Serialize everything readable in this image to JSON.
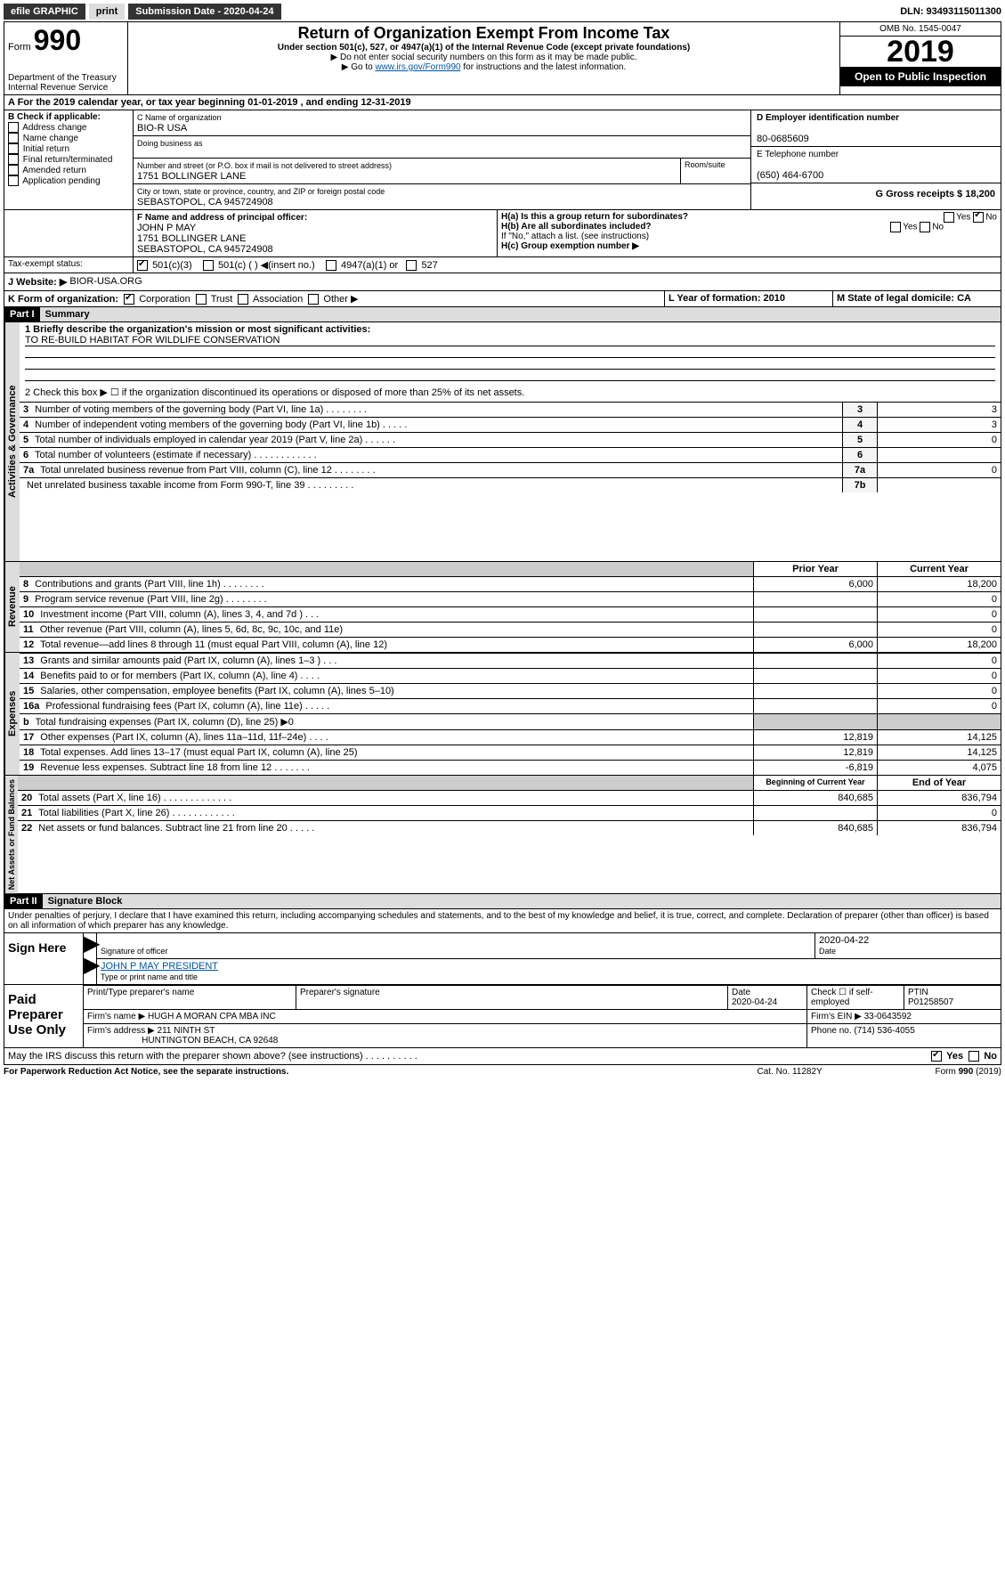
{
  "topbar": {
    "efile": "efile GRAPHIC",
    "print": "print",
    "subdate_label": "Submission Date - 2020-04-24",
    "dln": "DLN: 93493115011300"
  },
  "header": {
    "form_label": "Form",
    "form_no": "990",
    "dept": "Department of the Treasury\nInternal Revenue Service",
    "title": "Return of Organization Exempt From Income Tax",
    "subtitle": "Under section 501(c), 527, or 4947(a)(1) of the Internal Revenue Code (except private foundations)",
    "note1": "▶ Do not enter social security numbers on this form as it may be made public.",
    "note2_pre": "▶ Go to ",
    "note2_link": "www.irs.gov/Form990",
    "note2_post": " for instructions and the latest information.",
    "omb": "OMB No. 1545-0047",
    "year": "2019",
    "open": "Open to Public Inspection"
  },
  "line_a": "A For the 2019 calendar year, or tax year beginning 01-01-2019    , and ending 12-31-2019",
  "box_b": {
    "label": "B Check if applicable:",
    "items": [
      "Address change",
      "Name change",
      "Initial return",
      "Final return/terminated",
      "Amended return",
      "Application pending"
    ]
  },
  "box_c": {
    "label": "C Name of organization",
    "name": "BIO-R USA",
    "dba_label": "Doing business as",
    "addr_label": "Number and street (or P.O. box if mail is not delivered to street address)",
    "room_label": "Room/suite",
    "addr": "1751 BOLLINGER LANE",
    "city_label": "City or town, state or province, country, and ZIP or foreign postal code",
    "city": "SEBASTOPOL, CA  945724908"
  },
  "box_d": {
    "label": "D Employer identification number",
    "val": "80-0685609"
  },
  "box_e": {
    "label": "E Telephone number",
    "val": "(650) 464-6700"
  },
  "box_g": {
    "label": "G Gross receipts $ 18,200"
  },
  "box_f": {
    "label": "F Name and address of principal officer:",
    "name": "JOHN P MAY",
    "addr1": "1751 BOLLINGER LANE",
    "addr2": "SEBASTOPOL, CA  945724908"
  },
  "box_h": {
    "a": "H(a)  Is this a group return for subordinates?",
    "b": "H(b)  Are all subordinates included?",
    "note": "If \"No,\" attach a list. (see instructions)",
    "c": "H(c)  Group exemption number ▶"
  },
  "tax_status": {
    "label": "Tax-exempt status:",
    "c3": "501(c)(3)",
    "c": "501(c) (  ) ◀(insert no.)",
    "a1": "4947(a)(1) or",
    "s527": "527"
  },
  "box_j": {
    "label": "J Website: ▶",
    "val": "BIOR-USA.ORG"
  },
  "box_k": {
    "label": "K Form of organization:",
    "corp": "Corporation",
    "trust": "Trust",
    "assoc": "Association",
    "other": "Other ▶"
  },
  "box_l": {
    "label": "L Year of formation: 2010"
  },
  "box_m": {
    "label": "M State of legal domicile: CA"
  },
  "part1": {
    "hdr": "Part I",
    "title": "Summary"
  },
  "summary": {
    "l1": "1  Briefly describe the organization's mission or most significant activities:",
    "l1v": "TO RE-BUILD HABITAT FOR WILDLIFE CONSERVATION",
    "l2": "2  Check this box ▶ ☐  if the organization discontinued its operations or disposed of more than 25% of its net assets.",
    "rows_gov": [
      {
        "n": "3",
        "t": "Number of voting members of the governing body (Part VI, line 1a)  .   .   .   .   .   .   .   .",
        "k": "3",
        "v": "3"
      },
      {
        "n": "4",
        "t": "Number of independent voting members of the governing body (Part VI, line 1b)  .   .   .   .   .",
        "k": "4",
        "v": "3"
      },
      {
        "n": "5",
        "t": "Total number of individuals employed in calendar year 2019 (Part V, line 2a)  .   .   .   .   .   .",
        "k": "5",
        "v": "0"
      },
      {
        "n": "6",
        "t": "Total number of volunteers (estimate if necessary)  .   .   .   .   .   .   .   .   .   .   .   .",
        "k": "6",
        "v": ""
      },
      {
        "n": "7a",
        "t": "Total unrelated business revenue from Part VIII, column (C), line 12  .   .   .   .   .   .   .   .",
        "k": "7a",
        "v": "0"
      },
      {
        "n": "",
        "t": "Net unrelated business taxable income from Form 990-T, line 39  .   .   .   .   .   .   .   .   .",
        "k": "7b",
        "v": ""
      }
    ],
    "py": "Prior Year",
    "cy": "Current Year",
    "rows_rev": [
      {
        "n": "8",
        "t": "Contributions and grants (Part VIII, line 1h)  .   .   .   .   .   .   .   .",
        "p": "6,000",
        "c": "18,200"
      },
      {
        "n": "9",
        "t": "Program service revenue (Part VIII, line 2g)   .   .   .   .   .   .   .   .",
        "p": "",
        "c": "0"
      },
      {
        "n": "10",
        "t": "Investment income (Part VIII, column (A), lines 3, 4, and 7d )   .   .   .",
        "p": "",
        "c": "0"
      },
      {
        "n": "11",
        "t": "Other revenue (Part VIII, column (A), lines 5, 6d, 8c, 9c, 10c, and 11e)",
        "p": "",
        "c": "0"
      },
      {
        "n": "12",
        "t": "Total revenue—add lines 8 through 11 (must equal Part VIII, column (A), line 12)",
        "p": "6,000",
        "c": "18,200"
      }
    ],
    "rows_exp": [
      {
        "n": "13",
        "t": "Grants and similar amounts paid (Part IX, column (A), lines 1–3 )  .   .   .",
        "p": "",
        "c": "0"
      },
      {
        "n": "14",
        "t": "Benefits paid to or for members (Part IX, column (A), line 4)  .   .   .   .",
        "p": "",
        "c": "0"
      },
      {
        "n": "15",
        "t": "Salaries, other compensation, employee benefits (Part IX, column (A), lines 5–10)",
        "p": "",
        "c": "0"
      },
      {
        "n": "16a",
        "t": "Professional fundraising fees (Part IX, column (A), line 11e)  .   .   .   .   .",
        "p": "",
        "c": "0"
      },
      {
        "n": "b",
        "t": "Total fundraising expenses (Part IX, column (D), line 25) ▶0",
        "p": "__grey__",
        "c": "__grey__"
      },
      {
        "n": "17",
        "t": "Other expenses (Part IX, column (A), lines 11a–11d, 11f–24e)  .   .   .   .",
        "p": "12,819",
        "c": "14,125"
      },
      {
        "n": "18",
        "t": "Total expenses. Add lines 13–17 (must equal Part IX, column (A), line 25)",
        "p": "12,819",
        "c": "14,125"
      },
      {
        "n": "19",
        "t": "Revenue less expenses. Subtract line 18 from line 12  .   .   .   .   .   .   .",
        "p": "-6,819",
        "c": "4,075"
      }
    ],
    "bcy": "Beginning of Current Year",
    "eoy": "End of Year",
    "rows_na": [
      {
        "n": "20",
        "t": "Total assets (Part X, line 16)  .   .   .   .   .   .   .   .   .   .   .   .   .",
        "p": "840,685",
        "c": "836,794"
      },
      {
        "n": "21",
        "t": "Total liabilities (Part X, line 26)  .   .   .   .   .   .   .   .   .   .   .   .",
        "p": "",
        "c": "0"
      },
      {
        "n": "22",
        "t": "Net assets or fund balances. Subtract line 21 from line 20  .   .   .   .   .",
        "p": "840,685",
        "c": "836,794"
      }
    ]
  },
  "vtabs": {
    "gov": "Activities & Governance",
    "rev": "Revenue",
    "exp": "Expenses",
    "na": "Net Assets or Fund Balances"
  },
  "part2": {
    "hdr": "Part II",
    "title": "Signature Block"
  },
  "perjury": "Under penalties of perjury, I declare that I have examined this return, including accompanying schedules and statements, and to the best of my knowledge and belief, it is true, correct, and complete. Declaration of preparer (other than officer) is based on all information of which preparer has any knowledge.",
  "sign": {
    "here": "Sign Here",
    "sig_label": "Signature of officer",
    "date": "2020-04-22",
    "date_label": "Date",
    "name": "JOHN P MAY PRESIDENT",
    "name_label": "Type or print name and title"
  },
  "paid": {
    "label": "Paid Preparer Use Only",
    "h1": "Print/Type preparer's name",
    "h2": "Preparer's signature",
    "h3": "Date",
    "h4": "Check ☐ if self-employed",
    "h5": "PTIN",
    "date": "2020-04-24",
    "ptin": "P01258507",
    "firm_label": "Firm's name    ▶",
    "firm": "HUGH A MORAN CPA MBA INC",
    "ein_label": "Firm's EIN ▶ 33-0643592",
    "addr_label": "Firm's address ▶",
    "addr1": "211 NINTH ST",
    "addr2": "HUNTINGTON BEACH, CA  92648",
    "phone": "Phone no. (714) 536-4055"
  },
  "footer": {
    "discuss": "May the IRS discuss this return with the preparer shown above? (see instructions)   .   .   .   .   .   .   .   .   .   .",
    "yes": "Yes",
    "no": "No",
    "pra": "For Paperwork Reduction Act Notice, see the separate instructions.",
    "cat": "Cat. No. 11282Y",
    "form": "Form 990 (2019)"
  }
}
